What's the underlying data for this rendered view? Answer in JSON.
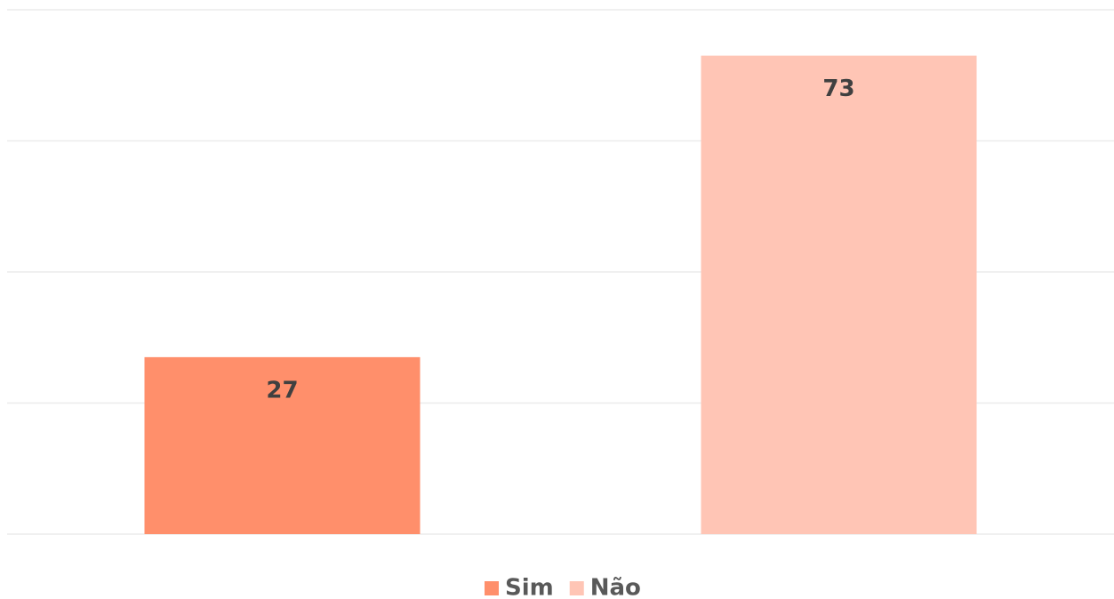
{
  "chart_data": {
    "type": "bar",
    "categories": [
      null
    ],
    "series": [
      {
        "name": "Sim",
        "color": "#ff8f6b",
        "values": [
          27
        ]
      },
      {
        "name": "Não",
        "color": "#ffc5b5",
        "values": [
          73
        ]
      }
    ],
    "ylim": [
      0,
      80
    ],
    "yticks": [
      0,
      20,
      40,
      60,
      80
    ],
    "grid": true,
    "legend": "bottom"
  }
}
